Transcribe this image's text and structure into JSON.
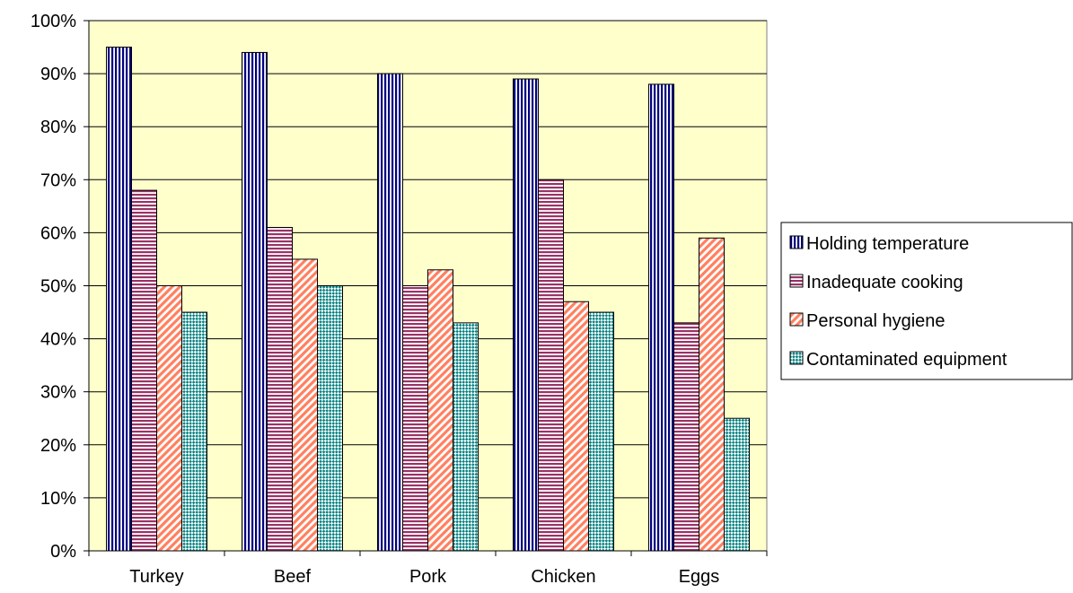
{
  "chart_data": {
    "type": "bar",
    "categories": [
      "Turkey",
      "Beef",
      "Pork",
      "Chicken",
      "Eggs"
    ],
    "series": [
      {
        "name": "Holding temperature",
        "values": [
          95,
          94,
          90,
          89,
          88
        ],
        "color": "#000080",
        "pattern": "vertical-stripes"
      },
      {
        "name": "Inadequate cooking",
        "values": [
          68,
          61,
          50,
          70,
          43
        ],
        "color": "#993366",
        "pattern": "horizontal-stripes"
      },
      {
        "name": "Personal hygiene",
        "values": [
          50,
          55,
          53,
          47,
          59
        ],
        "color": "#FF8060",
        "pattern": "diagonal-stripes"
      },
      {
        "name": "Contaminated equipment",
        "values": [
          45,
          50,
          43,
          45,
          25
        ],
        "color": "#008080",
        "pattern": "checker"
      }
    ],
    "y_ticks": [
      "0%",
      "10%",
      "20%",
      "30%",
      "40%",
      "50%",
      "60%",
      "70%",
      "80%",
      "90%",
      "100%"
    ],
    "ylim": [
      0,
      100
    ],
    "y_unit": "%",
    "title": "",
    "xlabel": "",
    "ylabel": "",
    "grid": "horizontal",
    "legend_position": "right",
    "plot_background": "#FFFFCC"
  }
}
